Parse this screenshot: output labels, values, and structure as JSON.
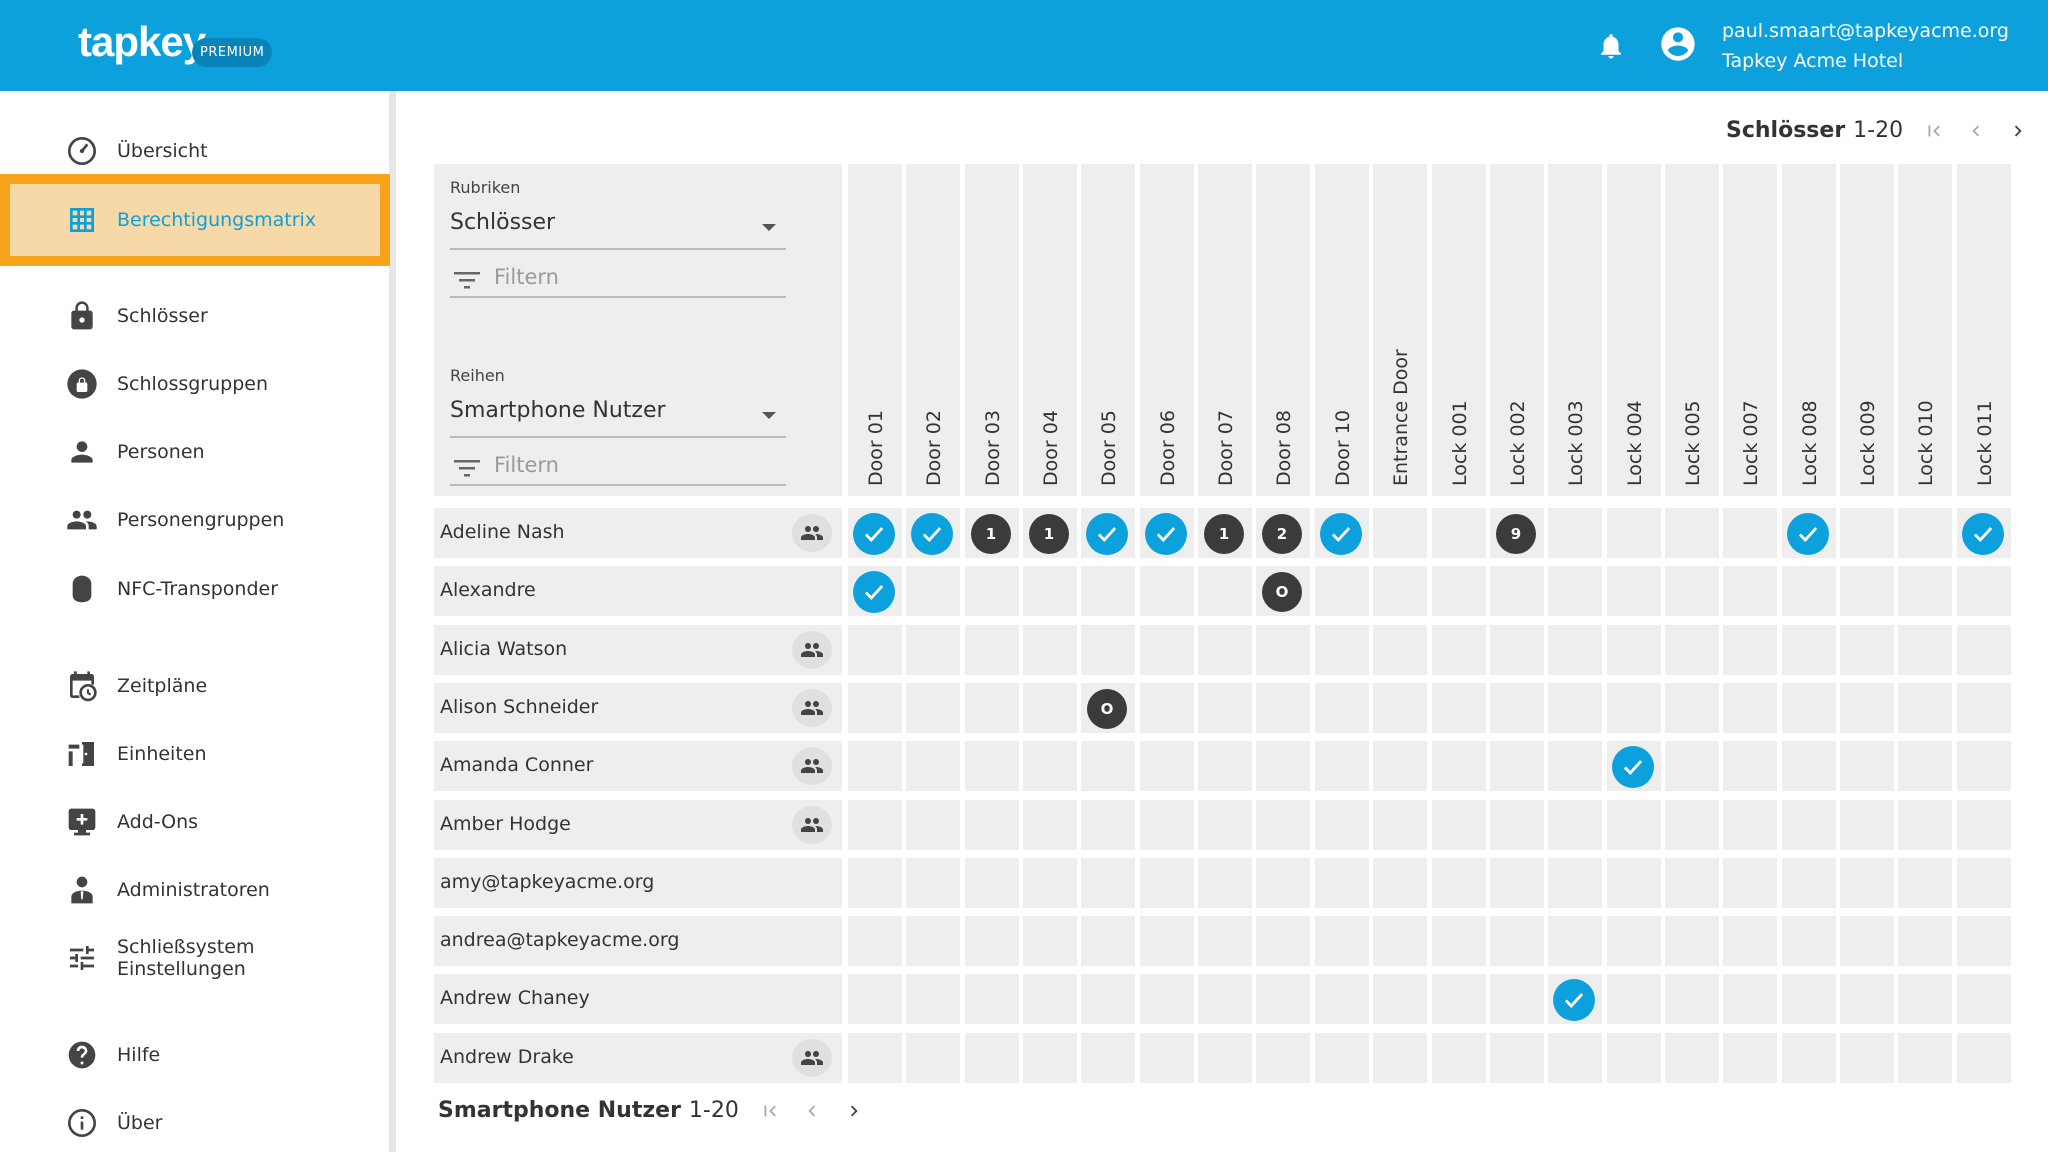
{
  "header": {
    "logo": "tapkey",
    "badge": "PREMIUM",
    "user_email": "paul.smaart@tapkeyacme.org",
    "user_org": "Tapkey Acme Hotel",
    "accent": "#0ca1dc"
  },
  "sidebar": {
    "items": [
      {
        "label": "Übersicht",
        "icon": "dashboard-icon"
      },
      {
        "label": "Berechtigungsmatrix",
        "icon": "grid-icon",
        "active": true
      },
      {
        "label": "Schlösser",
        "icon": "lock-icon"
      },
      {
        "label": "Schlossgruppen",
        "icon": "lock-group-icon"
      },
      {
        "label": "Personen",
        "icon": "person-icon"
      },
      {
        "label": "Personengruppen",
        "icon": "people-icon"
      },
      {
        "label": "NFC-Transponder",
        "icon": "nfc-tag-icon"
      },
      {
        "label": "Zeitpläne",
        "icon": "calendar-clock-icon"
      },
      {
        "label": "Einheiten",
        "icon": "door-icon"
      },
      {
        "label": "Add-Ons",
        "icon": "add-box-icon"
      },
      {
        "label": "Administratoren",
        "icon": "admin-icon"
      },
      {
        "label": "Schließsystem Einstellungen",
        "icon": "tune-icon"
      },
      {
        "label": "Hilfe",
        "icon": "help-icon"
      },
      {
        "label": "Über",
        "icon": "info-icon"
      }
    ]
  },
  "pager_top": {
    "label": "Schlösser",
    "range": "1-20"
  },
  "pager_bottom": {
    "label": "Smartphone Nutzer",
    "range": "1-20"
  },
  "filters": {
    "columns_caption": "Rubriken",
    "columns_value": "Schlösser",
    "columns_filter_placeholder": "Filtern",
    "rows_caption": "Reihen",
    "rows_value": "Smartphone Nutzer",
    "rows_filter_placeholder": "Filtern"
  },
  "columns": [
    "Door 01",
    "Door 02",
    "Door 03",
    "Door 04",
    "Door 05",
    "Door 06",
    "Door 07",
    "Door 08",
    "Door 10",
    "Entrance Door",
    "Lock 001",
    "Lock 002",
    "Lock 003",
    "Lock 004",
    "Lock 005",
    "Lock 007",
    "Lock 008",
    "Lock 009",
    "Lock 010",
    "Lock 011"
  ],
  "rows": [
    {
      "name": "Adeline Nash",
      "group": true,
      "cells": [
        "check",
        "check",
        "1",
        "1",
        "check",
        "check",
        "1",
        "2",
        "check",
        "",
        "",
        "9",
        "",
        "",
        "",
        "",
        "check",
        "",
        "",
        "check"
      ]
    },
    {
      "name": "Alexandre",
      "group": false,
      "cells": [
        "check",
        "",
        "",
        "",
        "",
        "",
        "",
        "O",
        "",
        "",
        "",
        "",
        "",
        "",
        "",
        "",
        "",
        "",
        "",
        ""
      ]
    },
    {
      "name": "Alicia Watson",
      "group": true,
      "cells": [
        "",
        "",
        "",
        "",
        "",
        "",
        "",
        "",
        "",
        "",
        "",
        "",
        "",
        "",
        "",
        "",
        "",
        "",
        "",
        ""
      ]
    },
    {
      "name": "Alison Schneider",
      "group": true,
      "cells": [
        "",
        "",
        "",
        "",
        "O",
        "",
        "",
        "",
        "",
        "",
        "",
        "",
        "",
        "",
        "",
        "",
        "",
        "",
        "",
        ""
      ]
    },
    {
      "name": "Amanda Conner",
      "group": true,
      "cells": [
        "",
        "",
        "",
        "",
        "",
        "",
        "",
        "",
        "",
        "",
        "",
        "",
        "",
        "check",
        "",
        "",
        "",
        "",
        "",
        ""
      ]
    },
    {
      "name": "Amber Hodge",
      "group": true,
      "cells": [
        "",
        "",
        "",
        "",
        "",
        "",
        "",
        "",
        "",
        "",
        "",
        "",
        "",
        "",
        "",
        "",
        "",
        "",
        "",
        ""
      ]
    },
    {
      "name": "amy@tapkeyacme.org",
      "group": false,
      "cells": [
        "",
        "",
        "",
        "",
        "",
        "",
        "",
        "",
        "",
        "",
        "",
        "",
        "",
        "",
        "",
        "",
        "",
        "",
        "",
        ""
      ]
    },
    {
      "name": "andrea@tapkeyacme.org",
      "group": false,
      "cells": [
        "",
        "",
        "",
        "",
        "",
        "",
        "",
        "",
        "",
        "",
        "",
        "",
        "",
        "",
        "",
        "",
        "",
        "",
        "",
        ""
      ]
    },
    {
      "name": "Andrew Chaney",
      "group": false,
      "cells": [
        "",
        "",
        "",
        "",
        "",
        "",
        "",
        "",
        "",
        "",
        "",
        "",
        "check",
        "",
        "",
        "",
        "",
        "",
        "",
        ""
      ]
    },
    {
      "name": "Andrew Drake",
      "group": true,
      "cells": [
        "",
        "",
        "",
        "",
        "",
        "",
        "",
        "",
        "",
        "",
        "",
        "",
        "",
        "",
        "",
        "",
        "",
        "",
        "",
        ""
      ]
    }
  ]
}
